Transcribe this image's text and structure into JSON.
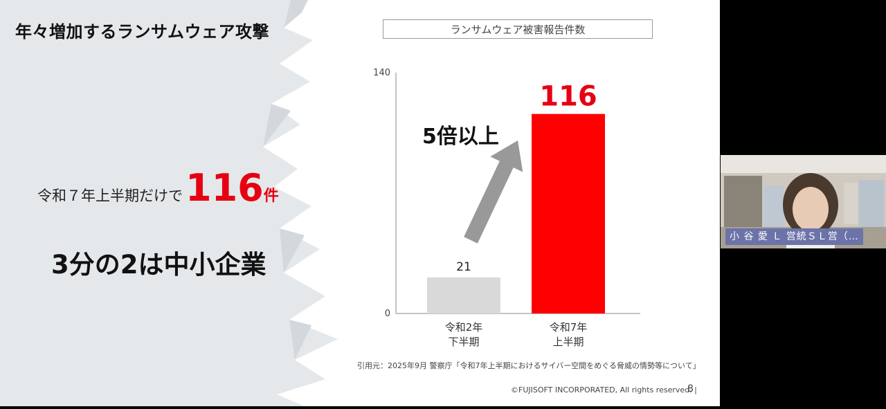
{
  "slide": {
    "title": "年々増加するランサムウェア攻撃",
    "stat_prefix": "令和７年上半期だけで",
    "stat_number": "116",
    "stat_unit": "件",
    "sub_claim": "3分の2は中小企業",
    "source_note": "引用元：2025年9月 警察庁「令和7年上半期におけるサイバー空間をめぐる脅威の情勢等について」",
    "copyright": "©FUJISOFT INCORPORATED, All rights reserved. |",
    "page_number": "8"
  },
  "chart_data": {
    "type": "bar",
    "title": "ランサムウェア被害報告件数",
    "categories": [
      [
        "令和2年",
        "下半期"
      ],
      [
        "令和7年",
        "上半期"
      ]
    ],
    "values": [
      21,
      116
    ],
    "value_labels": [
      "21",
      "116"
    ],
    "ylim": [
      0,
      140
    ],
    "y_ticks": [
      "0",
      "140"
    ],
    "bar_colors": [
      "#d9d9d9",
      "#ff0000"
    ],
    "annotation": "5倍以上",
    "grid": false
  },
  "video": {
    "participant_name": "小 谷 愛 Ｌ 営統ＳＬ営（…"
  },
  "colors": {
    "accent_red": "#e60012",
    "name_label_bg": "#6b73a8"
  }
}
